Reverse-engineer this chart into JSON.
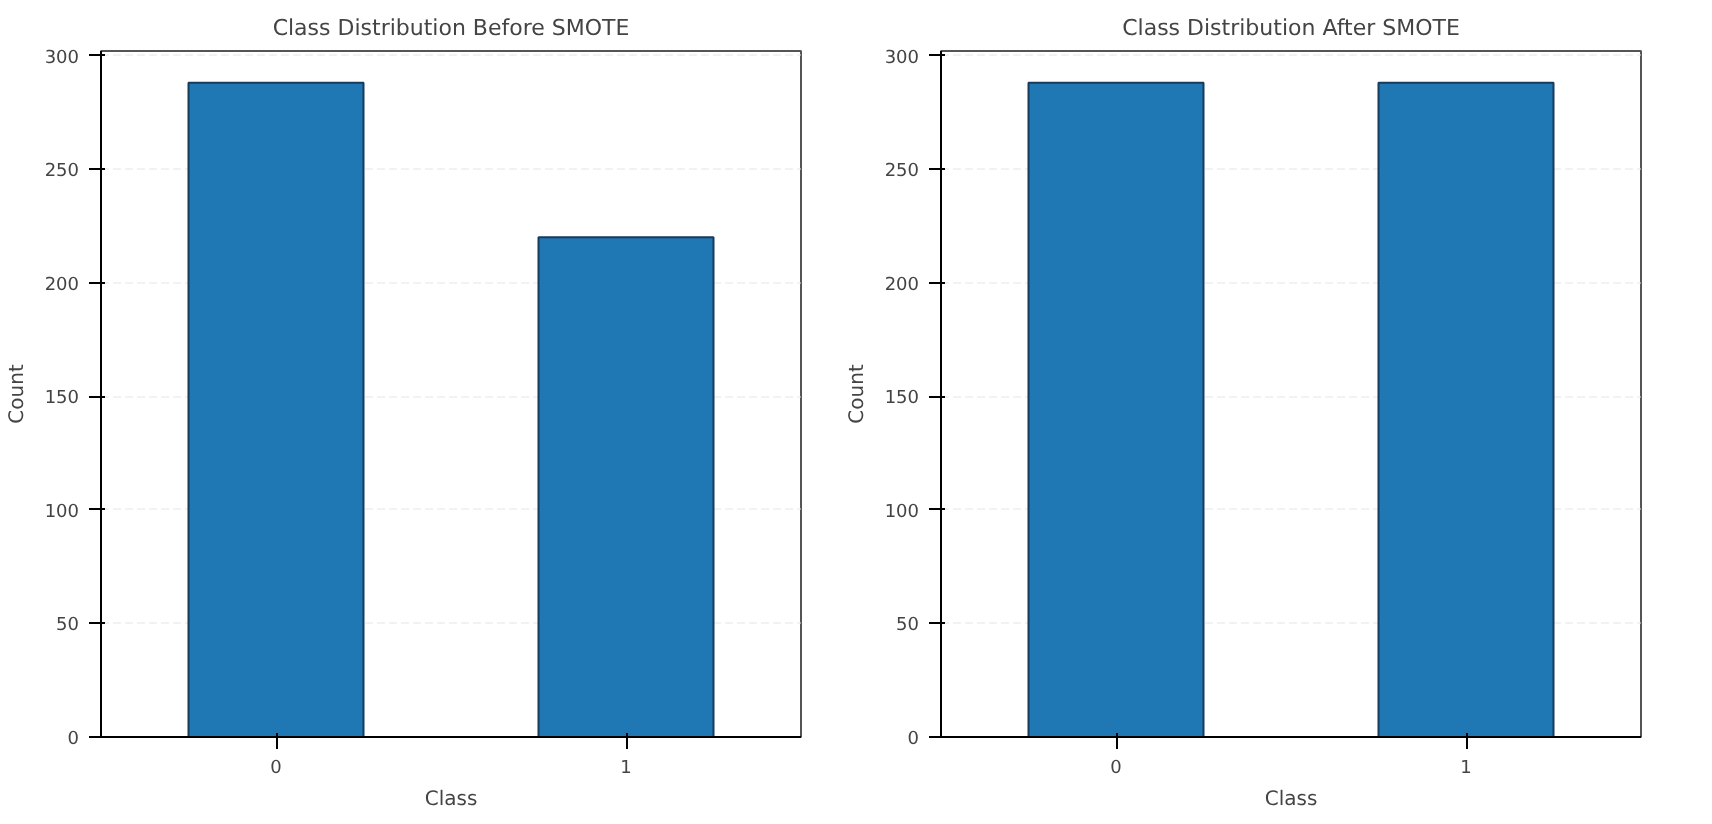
{
  "chart_data": [
    {
      "type": "bar",
      "title": "Class Distribution Before SMOTE",
      "xlabel": "Class",
      "ylabel": "Count",
      "categories": [
        "0",
        "1"
      ],
      "values": [
        288,
        220
      ],
      "color": "#1f77b4",
      "ylim": [
        0,
        302
      ],
      "yticks": [
        0,
        50,
        100,
        150,
        200,
        250,
        300
      ],
      "grid": "y"
    },
    {
      "type": "bar",
      "title": "Class Distribution After SMOTE",
      "xlabel": "Class",
      "ylabel": "Count",
      "categories": [
        "0",
        "1"
      ],
      "values": [
        288,
        288
      ],
      "color": "#1f77b4",
      "ylim": [
        0,
        302
      ],
      "yticks": [
        0,
        50,
        100,
        150,
        200,
        250,
        300
      ],
      "grid": "y"
    }
  ]
}
